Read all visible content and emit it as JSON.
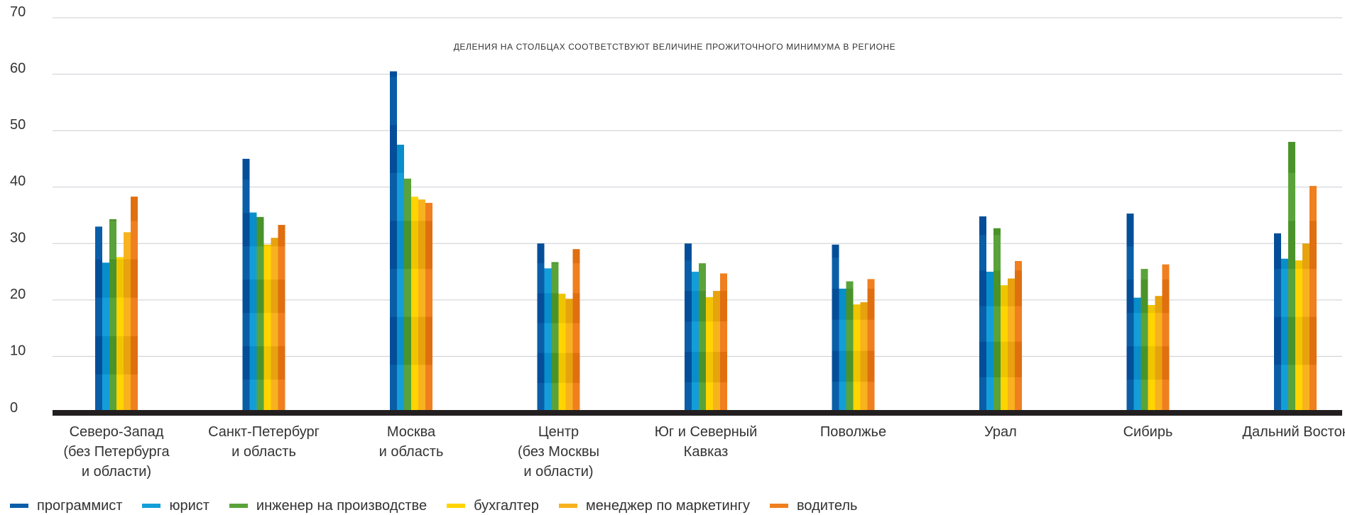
{
  "chart_data": {
    "type": "bar",
    "title": "",
    "annotation": "ДЕЛЕНИЯ НА СТОЛБЦАХ СООТВЕТСТВУЮТ ВЕЛИЧИНЕ ПРОЖИТОЧНОГО МИНИМУМА В РЕГИОНЕ",
    "xlabel": "",
    "ylabel": "",
    "ylim": [
      0,
      70
    ],
    "yticks": [
      0,
      10,
      20,
      30,
      40,
      50,
      60,
      70
    ],
    "grid": true,
    "legend_position": "bottom-left",
    "categories": [
      [
        "Северо-Запад",
        "(без Петербурга",
        "и области)"
      ],
      [
        "Санкт-Петербург",
        "и область"
      ],
      [
        "Москва",
        "и область"
      ],
      [
        "Центр",
        "(без Москвы",
        "и области)"
      ],
      [
        "Юг и Северный",
        "Кавказ"
      ],
      [
        "Поволжье"
      ],
      [
        "Урал"
      ],
      [
        "Сибирь"
      ],
      [
        "Дальний Восток"
      ]
    ],
    "subsistence_minimum": [
      6.8,
      5.9,
      8.5,
      5.3,
      5.4,
      5.5,
      6.3,
      5.9,
      8.5
    ],
    "series": [
      {
        "name": "программист",
        "color": "#0a5ea8",
        "values": [
          33.0,
          45.0,
          60.5,
          30.0,
          30.0,
          29.8,
          34.8,
          35.3,
          31.8
        ]
      },
      {
        "name": "юрист",
        "color": "#139ed9",
        "values": [
          26.6,
          35.5,
          47.5,
          25.6,
          25.0,
          22.0,
          25.0,
          20.4,
          27.3
        ]
      },
      {
        "name": "инженер на производстве",
        "color": "#5aa23a",
        "values": [
          34.3,
          34.7,
          41.5,
          26.7,
          26.5,
          23.3,
          32.7,
          25.5,
          48.0
        ]
      },
      {
        "name": "бухгалтер",
        "color": "#ffd400",
        "values": [
          27.6,
          29.8,
          38.3,
          21.1,
          20.5,
          19.2,
          22.6,
          19.1,
          27.0
        ]
      },
      {
        "name": "менеджер по маркетингу",
        "color": "#f7b21e",
        "values": [
          32.0,
          31.0,
          37.8,
          20.2,
          21.6,
          19.6,
          23.8,
          20.7,
          30.0
        ]
      },
      {
        "name": "водитель",
        "color": "#f07f1f",
        "values": [
          38.3,
          33.3,
          37.2,
          29.0,
          24.7,
          23.7,
          26.9,
          26.3,
          40.2
        ]
      }
    ]
  }
}
